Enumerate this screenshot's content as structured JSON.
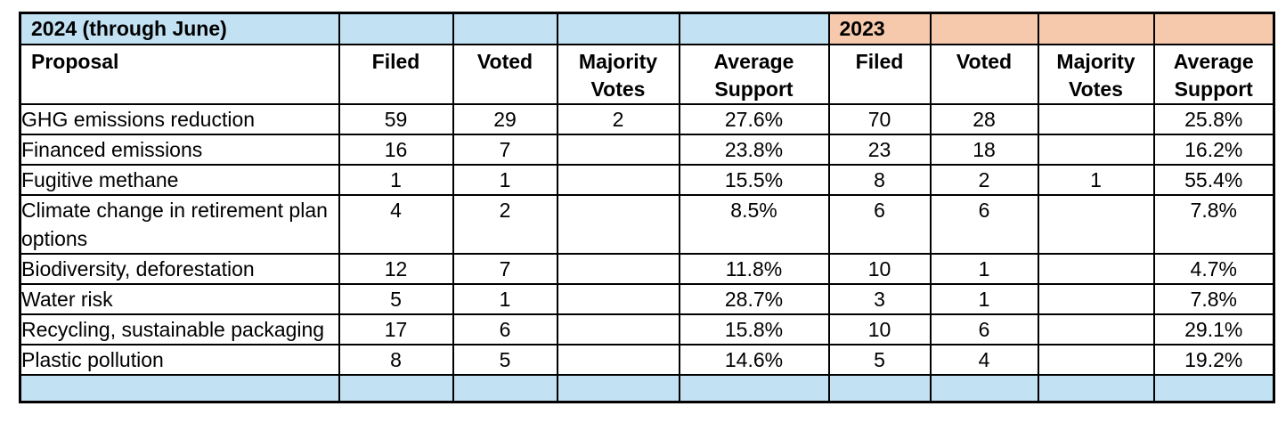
{
  "table": {
    "section_2024_label": "2024 (through June)",
    "section_2023_label": "2023",
    "columns": [
      "Proposal",
      "Filed",
      "Voted",
      "Majority Votes",
      "Average Support",
      "Filed",
      "Voted",
      "Majority Votes",
      "Average Support"
    ],
    "rows": [
      [
        "GHG emissions reduction",
        "59",
        "29",
        "2",
        "27.6%",
        "70",
        "28",
        "",
        "25.8%"
      ],
      [
        "Financed emissions",
        "16",
        "7",
        "",
        "23.8%",
        "23",
        "18",
        "",
        "16.2%"
      ],
      [
        "Fugitive methane",
        "1",
        "1",
        "",
        "15.5%",
        "8",
        "2",
        "1",
        "55.4%"
      ],
      [
        "Climate change in retirement plan options",
        "4",
        "2",
        "",
        "8.5%",
        "6",
        "6",
        "",
        "7.8%"
      ],
      [
        "Biodiversity, deforestation",
        "12",
        "7",
        "",
        "11.8%",
        "10",
        "1",
        "",
        "4.7%"
      ],
      [
        "Water risk",
        "5",
        "1",
        "",
        "28.7%",
        "3",
        "1",
        "",
        "7.8%"
      ],
      [
        "Recycling, sustainable packaging",
        "17",
        "6",
        "",
        "15.8%",
        "10",
        "6",
        "",
        "29.1%"
      ],
      [
        "Plastic pollution",
        "8",
        "5",
        "",
        "14.6%",
        "5",
        "4",
        "",
        "19.2%"
      ]
    ]
  },
  "colors": {
    "blue_header": "#C2E1F2",
    "peach_header": "#F6C9AC",
    "border": "#000000"
  },
  "chart_data": {
    "type": "table",
    "title": "",
    "row_label_column": "Proposal",
    "sections": [
      {
        "name": "2024 (through June)",
        "columns": [
          "Filed",
          "Voted",
          "Majority Votes",
          "Average Support"
        ]
      },
      {
        "name": "2023",
        "columns": [
          "Filed",
          "Voted",
          "Majority Votes",
          "Average Support"
        ]
      }
    ],
    "rows": [
      {
        "proposal": "GHG emissions reduction",
        "y2024": {
          "filed": 59,
          "voted": 29,
          "majority_votes": 2,
          "average_support": "27.6%"
        },
        "y2023": {
          "filed": 70,
          "voted": 28,
          "majority_votes": null,
          "average_support": "25.8%"
        }
      },
      {
        "proposal": "Financed emissions",
        "y2024": {
          "filed": 16,
          "voted": 7,
          "majority_votes": null,
          "average_support": "23.8%"
        },
        "y2023": {
          "filed": 23,
          "voted": 18,
          "majority_votes": null,
          "average_support": "16.2%"
        }
      },
      {
        "proposal": "Fugitive methane",
        "y2024": {
          "filed": 1,
          "voted": 1,
          "majority_votes": null,
          "average_support": "15.5%"
        },
        "y2023": {
          "filed": 8,
          "voted": 2,
          "majority_votes": 1,
          "average_support": "55.4%"
        }
      },
      {
        "proposal": "Climate change in retirement plan options",
        "y2024": {
          "filed": 4,
          "voted": 2,
          "majority_votes": null,
          "average_support": "8.5%"
        },
        "y2023": {
          "filed": 6,
          "voted": 6,
          "majority_votes": null,
          "average_support": "7.8%"
        }
      },
      {
        "proposal": "Biodiversity, deforestation",
        "y2024": {
          "filed": 12,
          "voted": 7,
          "majority_votes": null,
          "average_support": "11.8%"
        },
        "y2023": {
          "filed": 10,
          "voted": 1,
          "majority_votes": null,
          "average_support": "4.7%"
        }
      },
      {
        "proposal": "Water risk",
        "y2024": {
          "filed": 5,
          "voted": 1,
          "majority_votes": null,
          "average_support": "28.7%"
        },
        "y2023": {
          "filed": 3,
          "voted": 1,
          "majority_votes": null,
          "average_support": "7.8%"
        }
      },
      {
        "proposal": "Recycling, sustainable packaging",
        "y2024": {
          "filed": 17,
          "voted": 6,
          "majority_votes": null,
          "average_support": "15.8%"
        },
        "y2023": {
          "filed": 10,
          "voted": 6,
          "majority_votes": null,
          "average_support": "29.1%"
        }
      },
      {
        "proposal": "Plastic pollution",
        "y2024": {
          "filed": 8,
          "voted": 5,
          "majority_votes": null,
          "average_support": "14.6%"
        },
        "y2023": {
          "filed": 5,
          "voted": 4,
          "majority_votes": null,
          "average_support": "19.2%"
        }
      }
    ]
  }
}
